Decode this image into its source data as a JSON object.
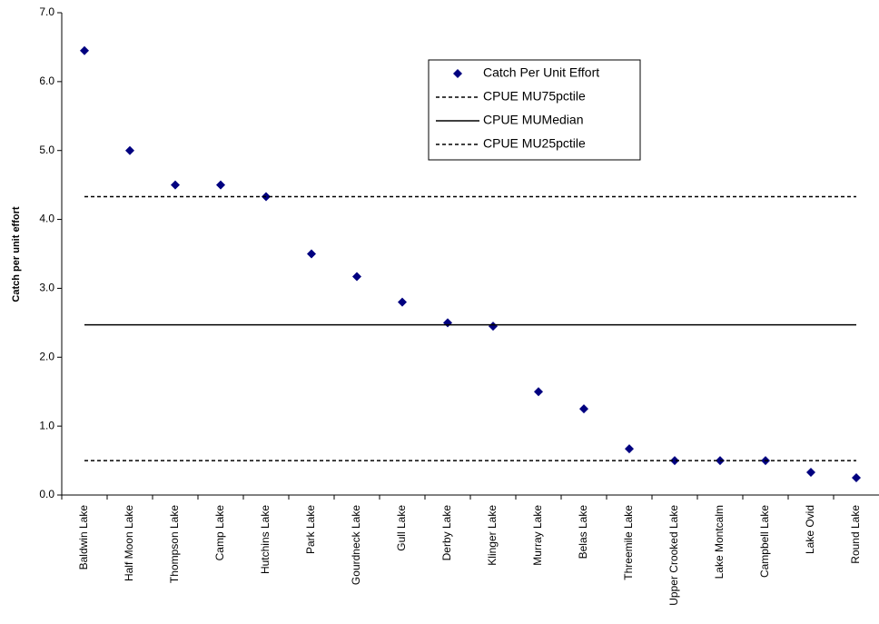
{
  "chart_data": {
    "type": "scatter",
    "y_label": "Catch per unit effort",
    "categories": [
      "Baldwin Lake",
      "Half Moon Lake",
      "Thompson Lake",
      "Camp Lake",
      "Hutchins Lake",
      "Park Lake",
      "Gourdneck Lake",
      "Gull Lake",
      "Derby Lake",
      "Klinger Lake",
      "Murray Lake",
      "Belas Lake",
      "Threemile Lake",
      "Upper Crooked Lake",
      "Lake Montcalm",
      "Campbell Lake",
      "Lake Ovid",
      "Round Lake"
    ],
    "series": [
      {
        "name": "Catch Per Unit Effort",
        "color": "#000080",
        "style": "marker",
        "values": [
          6.45,
          5.0,
          4.5,
          4.5,
          4.33,
          3.5,
          3.17,
          2.8,
          2.5,
          2.45,
          1.5,
          1.25,
          0.67,
          0.5,
          0.5,
          0.5,
          0.33,
          0.25
        ]
      },
      {
        "name": "CPUE MU75pctile",
        "color": "#000000",
        "style": "dashed",
        "values": [
          4.33,
          4.33,
          4.33,
          4.33,
          4.33,
          4.33,
          4.33,
          4.33,
          4.33,
          4.33,
          4.33,
          4.33,
          4.33,
          4.33,
          4.33,
          4.33,
          4.33,
          4.33
        ]
      },
      {
        "name": "CPUE MUMedian",
        "color": "#000000",
        "style": "solid",
        "values": [
          2.47,
          2.47,
          2.47,
          2.47,
          2.47,
          2.47,
          2.47,
          2.47,
          2.47,
          2.47,
          2.47,
          2.47,
          2.47,
          2.47,
          2.47,
          2.47,
          2.47,
          2.47
        ]
      },
      {
        "name": "CPUE MU25pctile",
        "color": "#000000",
        "style": "dashed",
        "values": [
          0.5,
          0.5,
          0.5,
          0.5,
          0.5,
          0.5,
          0.5,
          0.5,
          0.5,
          0.5,
          0.5,
          0.5,
          0.5,
          0.5,
          0.5,
          0.5,
          0.5,
          0.5
        ]
      }
    ],
    "ylim": [
      0,
      7
    ],
    "yticks": [
      {
        "value": 0,
        "label": "0.0"
      },
      {
        "value": 1,
        "label": "1.0"
      },
      {
        "value": 2,
        "label": "2.0"
      },
      {
        "value": 3,
        "label": "3.0"
      },
      {
        "value": 4,
        "label": "4.0"
      },
      {
        "value": 5,
        "label": "5.0"
      },
      {
        "value": 6,
        "label": "6.0"
      },
      {
        "value": 7,
        "label": "7.0"
      }
    ],
    "grid": false
  }
}
